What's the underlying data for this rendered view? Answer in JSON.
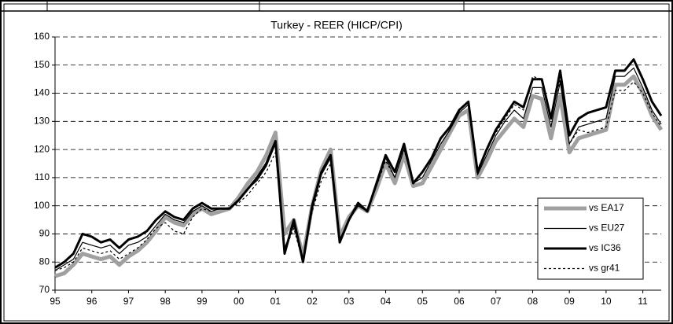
{
  "chart_data": {
    "type": "line",
    "title": "Turkey - REER (HICP/CPI)",
    "x": [
      1995,
      1995.25,
      1995.5,
      1995.75,
      1996,
      1996.25,
      1996.5,
      1996.75,
      1997,
      1997.25,
      1997.5,
      1997.75,
      1998,
      1998.25,
      1998.5,
      1998.75,
      1999,
      1999.25,
      1999.5,
      1999.75,
      2000,
      2000.25,
      2000.5,
      2000.75,
      2001,
      2001.25,
      2001.5,
      2001.75,
      2002,
      2002.25,
      2002.5,
      2002.75,
      2003,
      2003.25,
      2003.5,
      2003.75,
      2004,
      2004.25,
      2004.5,
      2004.75,
      2005,
      2005.25,
      2005.5,
      2005.75,
      2006,
      2006.25,
      2006.5,
      2006.75,
      2007,
      2007.25,
      2007.5,
      2007.75,
      2008,
      2008.25,
      2008.5,
      2008.75,
      2009,
      2009.25,
      2009.5,
      2009.75,
      2010,
      2010.25,
      2010.5,
      2010.75,
      2011,
      2011.25,
      2011.5
    ],
    "series": [
      {
        "name": "vs EA17",
        "color": "#a0a0a0",
        "line_width": 5,
        "dashed": false,
        "values": [
          75,
          76,
          79,
          83,
          82,
          81,
          82,
          79,
          82,
          84,
          87,
          91,
          96,
          94,
          93,
          97,
          99,
          97,
          98,
          99,
          103,
          108,
          112,
          118,
          126,
          90,
          95,
          82,
          100,
          113,
          120,
          89,
          96,
          100,
          98,
          106,
          115,
          108,
          118,
          107,
          108,
          114,
          120,
          126,
          132,
          134,
          110,
          116,
          123,
          127,
          131,
          128,
          139,
          138,
          124,
          139,
          119,
          124,
          125,
          126,
          127,
          143,
          143,
          146,
          140,
          132,
          127
        ]
      },
      {
        "name": "vs EU27",
        "color": "#000000",
        "line_width": 1.2,
        "dashed": false,
        "values": [
          77,
          79,
          81,
          87,
          86,
          85,
          86,
          83,
          86,
          87,
          89,
          93,
          97,
          95,
          94,
          98,
          100,
          98,
          99,
          99,
          102,
          106,
          109,
          114,
          122,
          85,
          93,
          81,
          99,
          111,
          117,
          88,
          95,
          100,
          98,
          107,
          117,
          110,
          120,
          108,
          110,
          116,
          122,
          127,
          133,
          136,
          111,
          118,
          125,
          130,
          134,
          131,
          142,
          142,
          128,
          144,
          122,
          128,
          129,
          130,
          131,
          146,
          146,
          149,
          142,
          134,
          129
        ]
      },
      {
        "name": "vs IC36",
        "color": "#000000",
        "line_width": 3,
        "dashed": false,
        "values": [
          78,
          80,
          83,
          90,
          89,
          87,
          88,
          85,
          88,
          89,
          91,
          95,
          98,
          96,
          95,
          99,
          101,
          99,
          99,
          99,
          102,
          106,
          110,
          115,
          123,
          83,
          95,
          80,
          100,
          112,
          118,
          87,
          95,
          101,
          98,
          108,
          118,
          112,
          122,
          108,
          112,
          117,
          124,
          128,
          134,
          137,
          112,
          120,
          127,
          132,
          137,
          135,
          145,
          145,
          131,
          148,
          125,
          131,
          133,
          134,
          135,
          148,
          148,
          152,
          145,
          137,
          132
        ]
      },
      {
        "name": "vs gr41",
        "color": "#000000",
        "line_width": 1.2,
        "dashed": true,
        "values": [
          77,
          78,
          80,
          85,
          84,
          83,
          84,
          81,
          83,
          85,
          88,
          92,
          94,
          91,
          90,
          96,
          99,
          98,
          99,
          99,
          101,
          104,
          108,
          112,
          119,
          84,
          92,
          80,
          98,
          109,
          115,
          88,
          95,
          100,
          98,
          107,
          116,
          110,
          120,
          108,
          110,
          116,
          122,
          127,
          134,
          137,
          113,
          120,
          126,
          131,
          136,
          134,
          146,
          145,
          132,
          145,
          122,
          127,
          126,
          127,
          128,
          141,
          141,
          144,
          140,
          133,
          128
        ]
      }
    ],
    "xlim": [
      1995,
      2011.5
    ],
    "xticks": [
      {
        "value": 1995,
        "label": "95"
      },
      {
        "value": 1996,
        "label": "96"
      },
      {
        "value": 1997,
        "label": "97"
      },
      {
        "value": 1998,
        "label": "98"
      },
      {
        "value": 1999,
        "label": "99"
      },
      {
        "value": 2000,
        "label": "00"
      },
      {
        "value": 2001,
        "label": "01"
      },
      {
        "value": 2002,
        "label": "02"
      },
      {
        "value": 2003,
        "label": "03"
      },
      {
        "value": 2004,
        "label": "04"
      },
      {
        "value": 2005,
        "label": "05"
      },
      {
        "value": 2006,
        "label": "06"
      },
      {
        "value": 2007,
        "label": "07"
      },
      {
        "value": 2008,
        "label": "08"
      },
      {
        "value": 2009,
        "label": "09"
      },
      {
        "value": 2010,
        "label": "10"
      },
      {
        "value": 2011,
        "label": "11"
      }
    ],
    "ylim": [
      70,
      160
    ],
    "yticks": [
      70,
      80,
      90,
      100,
      110,
      120,
      130,
      140,
      150,
      160
    ],
    "grid": true,
    "legend": "lower right"
  }
}
